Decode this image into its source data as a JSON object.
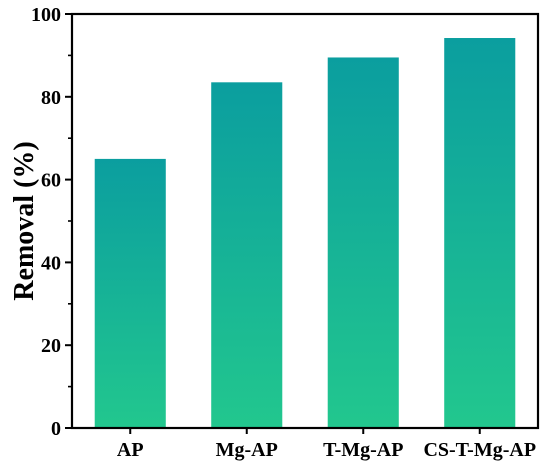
{
  "chart_data": {
    "type": "bar",
    "title": "",
    "xlabel": "",
    "ylabel": "Removal (%)",
    "categories": [
      "AP",
      "Mg-AP",
      "T-Mg-AP",
      "CS-T-Mg-AP"
    ],
    "values": [
      65,
      83.5,
      89.5,
      94.2
    ],
    "ylim": [
      0,
      100
    ],
    "yticks": [
      0,
      20,
      40,
      60,
      80,
      100
    ],
    "grid": false,
    "legend": "none",
    "colors": {
      "bar_top": "#0b9e9f",
      "bar_bottom": "#22c78e",
      "axis": "#000000"
    }
  }
}
